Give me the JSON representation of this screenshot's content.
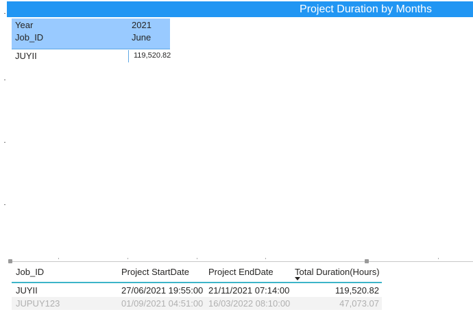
{
  "title": "Project Duration by Months",
  "matrix": {
    "row_header_labels": [
      "Year",
      "Job_ID"
    ],
    "column_year": "2021",
    "column_month": "June",
    "rows": [
      {
        "job_id": "JUYII",
        "value": "119,520.82"
      }
    ]
  },
  "table": {
    "columns": [
      "Job_ID",
      "Project StartDate",
      "Project EndDate",
      "Total Duration(Hours)"
    ],
    "rows": [
      [
        "JUYII",
        "27/06/2021 19:55:00",
        "21/11/2021 07:14:00",
        "119,520.82"
      ],
      [
        "JUPUY123",
        "01/09/2021 04:51:00",
        "16/03/2022 08:10:00",
        "47,073.07"
      ]
    ]
  },
  "colors": {
    "title_bar": "#2196f3",
    "matrix_header": "#99caff",
    "table_header_line": "#3cb4c8"
  }
}
